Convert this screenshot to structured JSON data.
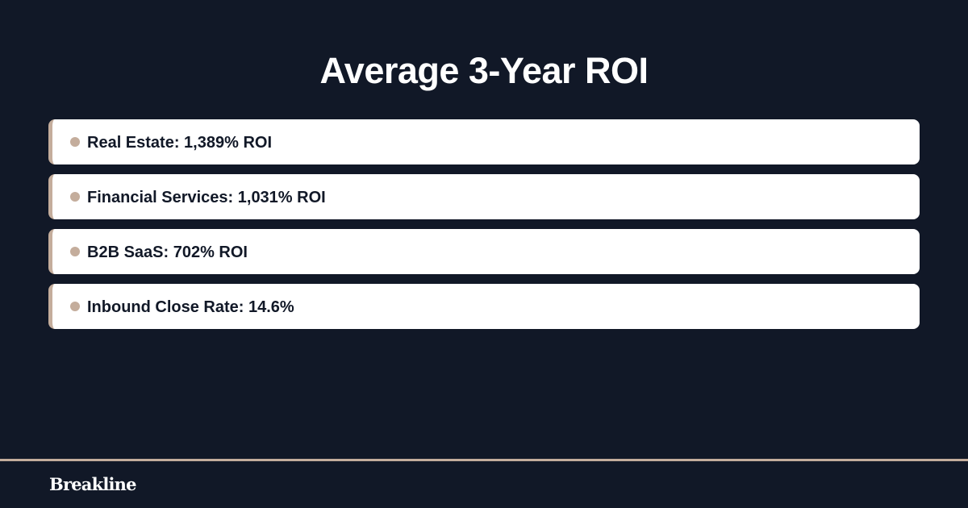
{
  "title": "Average 3-Year ROI",
  "items": [
    {
      "label": "Real Estate: 1,389% ROI"
    },
    {
      "label": "Financial Services: 1,031% ROI"
    },
    {
      "label": "B2B SaaS: 702% ROI"
    },
    {
      "label": "Inbound Close Rate: 14.6%"
    }
  ],
  "footer": {
    "brand": "Breakline"
  },
  "colors": {
    "background": "#111827",
    "accent": "#c4ad9c",
    "card": "#ffffff",
    "text_dark": "#111827"
  }
}
